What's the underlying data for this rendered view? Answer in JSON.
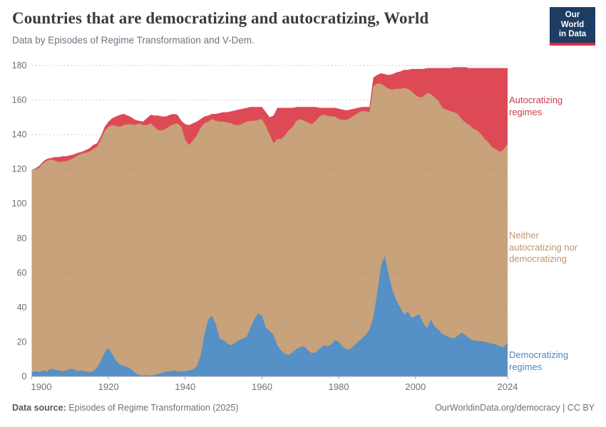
{
  "header": {
    "title": "Countries that are democratizing and autocratizing, World",
    "subtitle": "Data by Episodes of Regime Transformation and V-Dem.",
    "logo": {
      "line1": "Our World",
      "line2": "in Data",
      "bg_color": "#1d3d63",
      "bar_color": "#dd2a44"
    }
  },
  "footer": {
    "source_label": "Data source:",
    "source_value": " Episodes of Regime Transformation (2025)",
    "link": "OurWorldinData.org/democracy",
    "separator": " | ",
    "license": "CC BY"
  },
  "chart_data": {
    "type": "area",
    "stacked": true,
    "title": "Countries that are democratizing and autocratizing, World",
    "subtitle": "Data by Episodes of Regime Transformation and V-Dem.",
    "xlabel": "",
    "ylabel": "Number of countries",
    "x_range": [
      1900,
      2024
    ],
    "ylim": [
      0,
      180
    ],
    "xticks": [
      1900,
      1920,
      1940,
      1960,
      1980,
      2000,
      2024
    ],
    "yticks": [
      0,
      20,
      40,
      60,
      80,
      100,
      120,
      140,
      160,
      180
    ],
    "grid": "horizontal dashed",
    "legend_position": "right",
    "axis_text_color": "#6e7177",
    "grid_color": "#dadce0",
    "years": [
      1900,
      1901,
      1902,
      1903,
      1904,
      1905,
      1906,
      1907,
      1908,
      1909,
      1910,
      1911,
      1912,
      1913,
      1914,
      1915,
      1916,
      1917,
      1918,
      1919,
      1920,
      1921,
      1922,
      1923,
      1924,
      1925,
      1926,
      1927,
      1928,
      1929,
      1930,
      1931,
      1932,
      1933,
      1934,
      1935,
      1936,
      1937,
      1938,
      1939,
      1940,
      1941,
      1942,
      1943,
      1944,
      1945,
      1946,
      1947,
      1948,
      1949,
      1950,
      1951,
      1952,
      1953,
      1954,
      1955,
      1956,
      1957,
      1958,
      1959,
      1960,
      1961,
      1962,
      1963,
      1964,
      1965,
      1966,
      1967,
      1968,
      1969,
      1970,
      1971,
      1972,
      1973,
      1974,
      1975,
      1976,
      1977,
      1978,
      1979,
      1980,
      1981,
      1982,
      1983,
      1984,
      1985,
      1986,
      1987,
      1988,
      1989,
      1990,
      1991,
      1992,
      1993,
      1994,
      1995,
      1996,
      1997,
      1998,
      1999,
      2000,
      2001,
      2002,
      2003,
      2004,
      2005,
      2006,
      2007,
      2008,
      2009,
      2010,
      2011,
      2012,
      2013,
      2014,
      2015,
      2016,
      2017,
      2018,
      2019,
      2020,
      2021,
      2022,
      2023,
      2024
    ],
    "series": [
      {
        "id": "democratizing",
        "name": "Democratizing regimes",
        "label_display": "Democratizing\nregimes",
        "color": "#5590c7",
        "label_color": "#4a8ac0",
        "values": [
          2.5,
          3,
          2.5,
          3.5,
          3,
          4.5,
          4,
          3.5,
          3,
          3.5,
          4.5,
          4,
          3,
          3.5,
          3,
          2.5,
          3,
          5,
          9,
          14,
          16.5,
          13,
          9,
          7,
          6,
          5.5,
          4,
          2,
          1,
          0.5,
          1,
          0.5,
          1,
          1.5,
          2,
          3,
          3,
          3.5,
          3,
          3,
          3,
          3.5,
          4,
          6,
          12,
          24,
          33,
          35,
          30,
          22,
          21,
          19,
          18,
          19.5,
          21,
          22,
          23,
          28,
          33,
          36.5,
          35,
          28,
          26.5,
          24,
          18,
          15,
          13,
          12.5,
          14,
          16,
          17,
          17.5,
          15,
          13.5,
          14,
          16,
          18,
          17.5,
          18.5,
          21,
          20,
          17.5,
          15.5,
          16,
          18,
          20,
          22,
          24,
          27,
          34,
          48,
          64,
          70,
          59,
          50,
          44,
          40,
          36,
          37.5,
          34,
          35,
          36,
          31,
          28,
          33,
          29,
          27,
          24.5,
          23.5,
          22.5,
          22,
          23.5,
          25.5,
          24,
          22,
          21,
          20.5,
          20.5,
          20,
          19.5,
          19,
          18.5,
          17.5,
          17,
          19.5
        ]
      },
      {
        "id": "neither",
        "name": "Neither autocratizing nor democratizing",
        "label_display": "Neither\nautocratizing nor\ndemocratizing",
        "color": "#c7a27a",
        "label_color": "#c0946a",
        "values": [
          117,
          117,
          118.5,
          120,
          122,
          121,
          121,
          120.5,
          121.5,
          121,
          121,
          122.5,
          125,
          125.5,
          126.5,
          127.5,
          128.5,
          128,
          128,
          128,
          128,
          132.5,
          136,
          137.5,
          139.5,
          140.5,
          142,
          143.5,
          145.5,
          145,
          144.5,
          146,
          143.5,
          141,
          140.5,
          140.5,
          142,
          142.5,
          143.5,
          141.5,
          134,
          130.5,
          132.5,
          133.5,
          132,
          122.5,
          114.5,
          114,
          118,
          125.5,
          126.5,
          128,
          128.5,
          126,
          124.5,
          124.5,
          124.5,
          120,
          115,
          112,
          114,
          117,
          113.5,
          111,
          119.5,
          122.5,
          126.5,
          130,
          130.5,
          132,
          132,
          130.5,
          132,
          132.5,
          134,
          134.5,
          133.5,
          133.5,
          132,
          129.5,
          129,
          131,
          133,
          133.5,
          133,
          132.5,
          131.5,
          129.5,
          126,
          134,
          121.5,
          105.5,
          98,
          107.5,
          116,
          122.5,
          126.5,
          131,
          129,
          131,
          128,
          125.5,
          131,
          136,
          130.5,
          132.5,
          132.5,
          131,
          131,
          131,
          131,
          128.5,
          123.5,
          123,
          123.5,
          122.5,
          122,
          120,
          117.5,
          116,
          113.5,
          113,
          112.5,
          114.5,
          115
        ]
      },
      {
        "id": "autocratizing",
        "name": "Autocratizing regimes",
        "label_display": "Autocratizing\nregimes",
        "color": "#dd4a56",
        "label_color": "#cc3c4a",
        "values": [
          0,
          0.5,
          1,
          1,
          1,
          1,
          2,
          3,
          3,
          3,
          2.5,
          2,
          1.5,
          1,
          1.5,
          2,
          2.5,
          2,
          2,
          2.5,
          3,
          4,
          5.5,
          7,
          6.5,
          5,
          4,
          3,
          1.5,
          2,
          4,
          5,
          6.5,
          8.5,
          8,
          7,
          6.5,
          6,
          5,
          3.5,
          9,
          11.5,
          10,
          8,
          5,
          4,
          3.5,
          3,
          4,
          5,
          5.5,
          6,
          7,
          8.5,
          9,
          8.5,
          8,
          8,
          8,
          7.5,
          7,
          8,
          10,
          16,
          18,
          18,
          16,
          13,
          11,
          8,
          7,
          8,
          9,
          10,
          8,
          5,
          4,
          4.5,
          5,
          5,
          6,
          6,
          5.5,
          5,
          4,
          3,
          2.5,
          2.5,
          3,
          5,
          5,
          6,
          7,
          8,
          9,
          9.5,
          10,
          10.5,
          11,
          13,
          15,
          16.5,
          16,
          14.5,
          15,
          17,
          19,
          23,
          24,
          25,
          26,
          27,
          30,
          32,
          33,
          35,
          36,
          38,
          41,
          43,
          46,
          47,
          48.5,
          47,
          44
        ]
      }
    ]
  }
}
